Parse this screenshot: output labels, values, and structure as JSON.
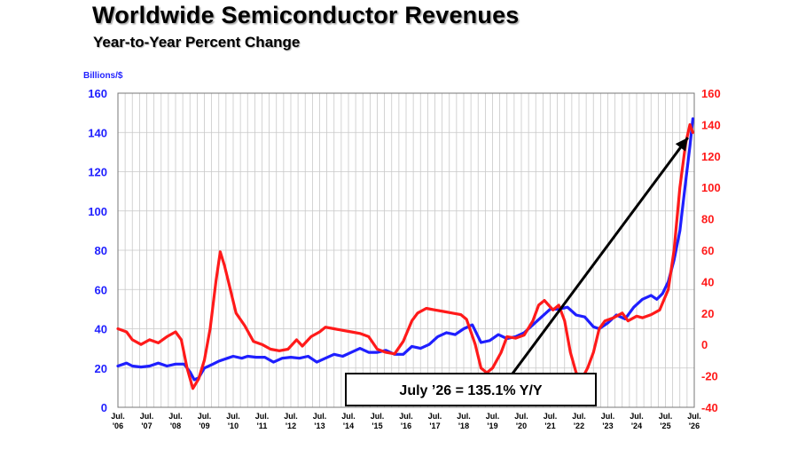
{
  "chart_data": {
    "type": "line",
    "title": "Worldwide Semiconductor Revenues",
    "subtitle": "Year-to-Year Percent Change",
    "ylabel_left": "Billions/$",
    "ylim_left": [
      0,
      160
    ],
    "ylim_right": [
      -40,
      160
    ],
    "yticks_left": [
      "0",
      "20",
      "40",
      "60",
      "80",
      "100",
      "120",
      "140",
      "160"
    ],
    "yticks_right": [
      "-40",
      "-20",
      "0",
      "20",
      "40",
      "60",
      "80",
      "100",
      "120",
      "140",
      "160"
    ],
    "xticks": [
      {
        "m": "Jul.",
        "y": "'06"
      },
      {
        "m": "Jul.",
        "y": "'07"
      },
      {
        "m": "Jul.",
        "y": "'08"
      },
      {
        "m": "Jul.",
        "y": "'09"
      },
      {
        "m": "Jul.",
        "y": "'10"
      },
      {
        "m": "Jul.",
        "y": "'11"
      },
      {
        "m": "Jul.",
        "y": "'12"
      },
      {
        "m": "Jul.",
        "y": "'13"
      },
      {
        "m": "Jul.",
        "y": "'14"
      },
      {
        "m": "Jul.",
        "y": "'15"
      },
      {
        "m": "Jul.",
        "y": "'16"
      },
      {
        "m": "Jul.",
        "y": "'17"
      },
      {
        "m": "Jul.",
        "y": "'18"
      },
      {
        "m": "Jul.",
        "y": "'19"
      },
      {
        "m": "Jul.",
        "y": "'20"
      },
      {
        "m": "Jul.",
        "y": "'21"
      },
      {
        "m": "Jul.",
        "y": "'22"
      },
      {
        "m": "Jul.",
        "y": "'23"
      },
      {
        "m": "Jul.",
        "y": "'24"
      },
      {
        "m": "Jul.",
        "y": "'25"
      },
      {
        "m": "Jul.",
        "y": "'26"
      }
    ],
    "grid": true,
    "series": [
      {
        "axis": "left",
        "color": "#1f1fff",
        "points": [
          [
            2006.5,
            21
          ],
          [
            2006.8,
            22.5
          ],
          [
            2007.0,
            21
          ],
          [
            2007.3,
            20.5
          ],
          [
            2007.6,
            21
          ],
          [
            2007.9,
            22.5
          ],
          [
            2008.2,
            21
          ],
          [
            2008.5,
            22
          ],
          [
            2008.8,
            22
          ],
          [
            2009.0,
            18
          ],
          [
            2009.15,
            14
          ],
          [
            2009.3,
            15
          ],
          [
            2009.5,
            20
          ],
          [
            2009.8,
            22
          ],
          [
            2010.0,
            23.5
          ],
          [
            2010.3,
            25
          ],
          [
            2010.5,
            26
          ],
          [
            2010.8,
            25
          ],
          [
            2011.0,
            26
          ],
          [
            2011.3,
            25.5
          ],
          [
            2011.6,
            25.5
          ],
          [
            2011.9,
            23
          ],
          [
            2012.2,
            25
          ],
          [
            2012.5,
            25.5
          ],
          [
            2012.8,
            25
          ],
          [
            2013.1,
            26
          ],
          [
            2013.4,
            23
          ],
          [
            2013.7,
            25
          ],
          [
            2014.0,
            27
          ],
          [
            2014.3,
            26
          ],
          [
            2014.6,
            28
          ],
          [
            2014.9,
            30
          ],
          [
            2015.2,
            28
          ],
          [
            2015.5,
            28
          ],
          [
            2015.8,
            29
          ],
          [
            2016.1,
            27
          ],
          [
            2016.4,
            27
          ],
          [
            2016.7,
            31
          ],
          [
            2017.0,
            30
          ],
          [
            2017.3,
            32
          ],
          [
            2017.6,
            36
          ],
          [
            2017.9,
            38
          ],
          [
            2018.2,
            37
          ],
          [
            2018.5,
            40
          ],
          [
            2018.8,
            42
          ],
          [
            2019.1,
            33
          ],
          [
            2019.4,
            34
          ],
          [
            2019.7,
            37
          ],
          [
            2020.0,
            35
          ],
          [
            2020.3,
            36
          ],
          [
            2020.6,
            38
          ],
          [
            2020.9,
            42
          ],
          [
            2021.2,
            46
          ],
          [
            2021.5,
            50
          ],
          [
            2021.8,
            50
          ],
          [
            2022.1,
            51
          ],
          [
            2022.4,
            47
          ],
          [
            2022.7,
            46
          ],
          [
            2023.0,
            41
          ],
          [
            2023.2,
            40
          ],
          [
            2023.5,
            43
          ],
          [
            2023.8,
            47
          ],
          [
            2024.1,
            45
          ],
          [
            2024.4,
            51
          ],
          [
            2024.7,
            55
          ],
          [
            2025.0,
            57
          ],
          [
            2025.2,
            55
          ],
          [
            2025.4,
            58
          ],
          [
            2025.6,
            64
          ],
          [
            2025.8,
            75
          ],
          [
            2026.0,
            90
          ],
          [
            2026.2,
            115
          ],
          [
            2026.35,
            133
          ],
          [
            2026.45,
            147
          ]
        ]
      },
      {
        "axis": "right",
        "color": "#ff1a1a",
        "points": [
          [
            2006.5,
            10
          ],
          [
            2006.8,
            8
          ],
          [
            2007.0,
            3
          ],
          [
            2007.3,
            0
          ],
          [
            2007.6,
            3
          ],
          [
            2007.9,
            1
          ],
          [
            2008.2,
            5
          ],
          [
            2008.5,
            8
          ],
          [
            2008.7,
            3
          ],
          [
            2008.9,
            -15
          ],
          [
            2009.1,
            -28
          ],
          [
            2009.3,
            -22
          ],
          [
            2009.5,
            -10
          ],
          [
            2009.7,
            10
          ],
          [
            2009.9,
            40
          ],
          [
            2010.05,
            59
          ],
          [
            2010.2,
            50
          ],
          [
            2010.4,
            35
          ],
          [
            2010.6,
            20
          ],
          [
            2010.9,
            12
          ],
          [
            2011.2,
            2
          ],
          [
            2011.5,
            0
          ],
          [
            2011.8,
            -3
          ],
          [
            2012.1,
            -4
          ],
          [
            2012.4,
            -3
          ],
          [
            2012.7,
            3
          ],
          [
            2012.9,
            -1
          ],
          [
            2013.2,
            5
          ],
          [
            2013.5,
            8
          ],
          [
            2013.7,
            11
          ],
          [
            2014.0,
            10
          ],
          [
            2014.3,
            9
          ],
          [
            2014.6,
            8
          ],
          [
            2014.9,
            7
          ],
          [
            2015.2,
            5
          ],
          [
            2015.5,
            -3
          ],
          [
            2015.8,
            -5
          ],
          [
            2016.1,
            -6
          ],
          [
            2016.4,
            2
          ],
          [
            2016.7,
            15
          ],
          [
            2016.9,
            20
          ],
          [
            2017.2,
            23
          ],
          [
            2017.5,
            22
          ],
          [
            2017.8,
            21
          ],
          [
            2018.1,
            20
          ],
          [
            2018.4,
            19
          ],
          [
            2018.6,
            16
          ],
          [
            2018.9,
            0
          ],
          [
            2019.1,
            -15
          ],
          [
            2019.3,
            -18
          ],
          [
            2019.5,
            -15
          ],
          [
            2019.8,
            -5
          ],
          [
            2020.0,
            5
          ],
          [
            2020.3,
            4
          ],
          [
            2020.6,
            6
          ],
          [
            2020.9,
            15
          ],
          [
            2021.1,
            25
          ],
          [
            2021.3,
            28
          ],
          [
            2021.6,
            22
          ],
          [
            2021.8,
            25
          ],
          [
            2022.0,
            15
          ],
          [
            2022.2,
            -5
          ],
          [
            2022.4,
            -18
          ],
          [
            2022.6,
            -22
          ],
          [
            2022.8,
            -15
          ],
          [
            2023.0,
            -5
          ],
          [
            2023.2,
            10
          ],
          [
            2023.4,
            15
          ],
          [
            2023.7,
            17
          ],
          [
            2024.0,
            20
          ],
          [
            2024.2,
            15
          ],
          [
            2024.5,
            18
          ],
          [
            2024.7,
            17
          ],
          [
            2025.0,
            19
          ],
          [
            2025.3,
            22
          ],
          [
            2025.6,
            35
          ],
          [
            2025.8,
            60
          ],
          [
            2026.0,
            100
          ],
          [
            2026.2,
            128
          ],
          [
            2026.35,
            140
          ],
          [
            2026.45,
            135
          ]
        ]
      }
    ],
    "annotation": {
      "text": "July ’26 = 135.1% Y/Y",
      "arrow_to": [
        2026.4,
        135.1
      ]
    }
  }
}
